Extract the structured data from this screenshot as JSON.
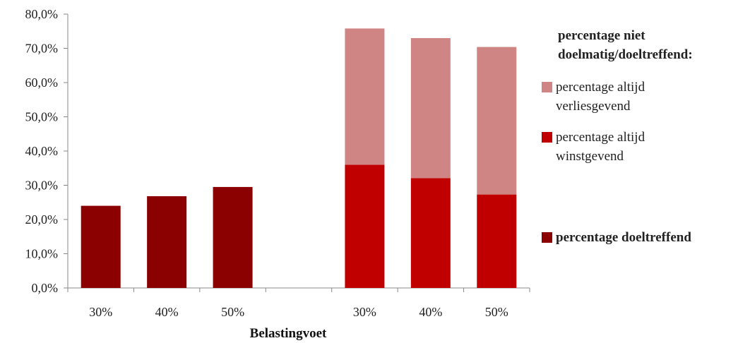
{
  "chart_data": {
    "type": "bar",
    "stacked": true,
    "title": "",
    "xlabel": "Belastingvoet",
    "ylabel": "",
    "ylim": [
      0,
      80
    ],
    "ytick_step": 10,
    "y_tick_format": "percent_comma_1dp",
    "categories": [
      "30%",
      "40%",
      "50%",
      "",
      "30%",
      "40%",
      "50%"
    ],
    "series": [
      {
        "name": "percentage doeltreffend",
        "color": "#8B0000",
        "values": [
          24.0,
          26.8,
          29.5,
          null,
          null,
          null,
          null
        ]
      },
      {
        "name": "percentage altijd winstgevend",
        "color": "#C00000",
        "values": [
          null,
          null,
          null,
          null,
          36.0,
          32.1,
          27.3
        ]
      },
      {
        "name": "percentage altijd verliesgevend",
        "color": "#D08585",
        "values": [
          null,
          null,
          null,
          null,
          39.8,
          40.9,
          43.1
        ]
      }
    ],
    "legend": {
      "position": "right",
      "group_title_lines": [
        "percentage niet",
        "doelmatig/doeltreffend:"
      ],
      "items": [
        {
          "series": 2,
          "lines": [
            "percentage altijd",
            "verliesgevend"
          ],
          "bold": false
        },
        {
          "series": 1,
          "lines": [
            "percentage altijd",
            "winstgevend"
          ],
          "bold": false
        },
        {
          "series": 0,
          "lines": [
            "percentage doeltreffend"
          ],
          "bold": true
        }
      ]
    }
  }
}
